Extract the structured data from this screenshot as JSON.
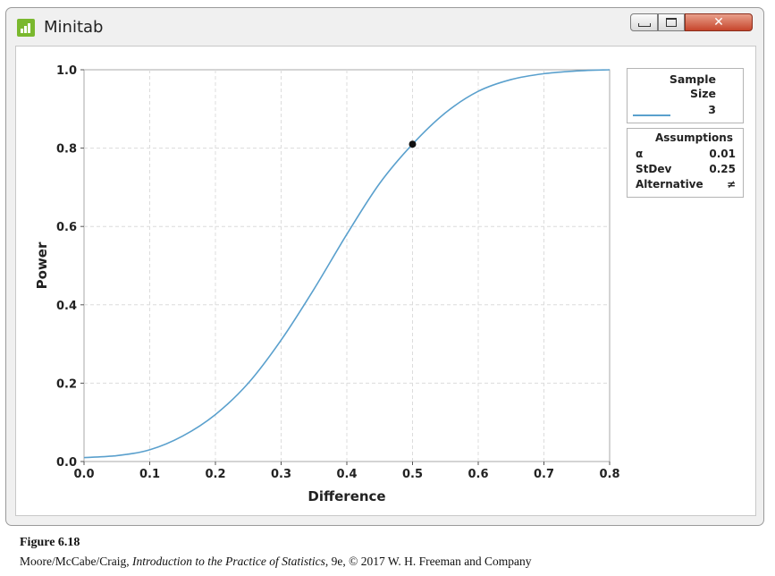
{
  "window": {
    "title": "Minitab",
    "controls": {
      "minimize": "minimize-icon",
      "maximize": "maximize-icon",
      "close": "close-icon"
    }
  },
  "chart_data": {
    "type": "line",
    "title": "",
    "xlabel": "Difference",
    "ylabel": "Power",
    "xlim": [
      0.0,
      0.8
    ],
    "ylim": [
      0.0,
      1.0
    ],
    "xticks": [
      "0.0",
      "0.1",
      "0.2",
      "0.3",
      "0.4",
      "0.5",
      "0.6",
      "0.7",
      "0.8"
    ],
    "yticks": [
      "0.0",
      "0.2",
      "0.4",
      "0.6",
      "0.8",
      "1.0"
    ],
    "grid": true,
    "series": [
      {
        "name": "3",
        "color": "#5aa0cd",
        "x": [
          0.0,
          0.05,
          0.1,
          0.15,
          0.2,
          0.25,
          0.3,
          0.35,
          0.4,
          0.45,
          0.5,
          0.55,
          0.6,
          0.65,
          0.7,
          0.75,
          0.8
        ],
        "y": [
          0.01,
          0.015,
          0.03,
          0.065,
          0.12,
          0.2,
          0.31,
          0.44,
          0.58,
          0.71,
          0.81,
          0.89,
          0.945,
          0.975,
          0.99,
          0.997,
          1.0
        ]
      }
    ],
    "highlight_point": {
      "x": 0.5,
      "y": 0.81
    },
    "legend": {
      "header": [
        "Sample",
        "Size"
      ],
      "entries": [
        "3"
      ],
      "placement": "right"
    },
    "assumptions": {
      "title": "Assumptions",
      "rows": [
        {
          "label": "α",
          "value": "0.01"
        },
        {
          "label": "StDev",
          "value": "0.25"
        },
        {
          "label": "Alternative",
          "value": "≠"
        }
      ]
    }
  },
  "caption": {
    "figure": "Figure 6.18",
    "authors": "Moore/McCabe/Craig, ",
    "book": "Introduction to the Practice of Statistics",
    "rest": ", 9e, © 2017 W. H. Freeman and Company"
  }
}
